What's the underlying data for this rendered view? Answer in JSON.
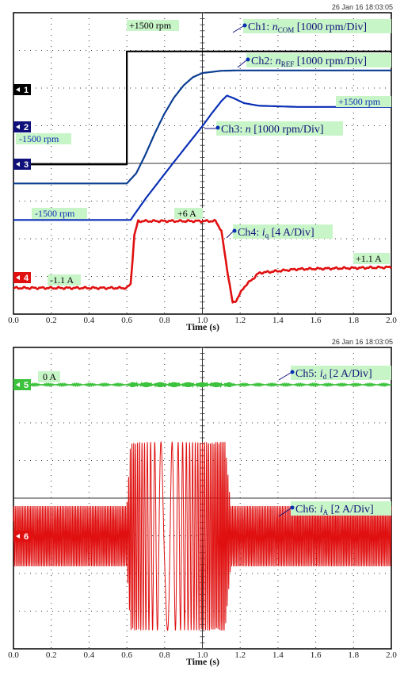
{
  "chart_data": [
    {
      "type": "line",
      "timestamp": "26 Jan 16  18:03:05",
      "xlabel": "Time (s)",
      "xlim": [
        0.0,
        2.0
      ],
      "x_ticks": [
        "0.0",
        "0.2",
        "0.4",
        "0.6",
        "0.8",
        "1.0",
        "1.2",
        "1.4",
        "1.6",
        "1.8",
        "2.0"
      ],
      "grid": true,
      "channel_markers": [
        "1",
        "2",
        "3",
        "4"
      ],
      "series": [
        {
          "channel": "1",
          "color": "#000000",
          "label_parts": [
            "Ch1: ",
            "n",
            "COM",
            " [1000 rpm/Div]"
          ],
          "x": [
            0.0,
            0.6,
            0.6,
            0.61,
            2.0
          ],
          "y": [
            -1500,
            -1500,
            1500,
            1500,
            1500
          ]
        },
        {
          "channel": "2",
          "color": "#0b3d91",
          "label_parts": [
            "Ch2: ",
            "n",
            "REF",
            " [1000 rpm/Div]"
          ],
          "x": [
            0.0,
            0.6,
            0.65,
            0.7,
            0.75,
            0.8,
            0.85,
            0.9,
            0.95,
            1.0,
            1.1,
            1.2,
            1.4,
            2.0
          ],
          "y": [
            -1500,
            -1500,
            -1230,
            -720,
            -150,
            360,
            780,
            1100,
            1320,
            1430,
            1490,
            1500,
            1500,
            1500
          ]
        },
        {
          "channel": "3",
          "color": "#0a2fb5",
          "label_parts": [
            "Ch3: ",
            "n",
            " [1000 rpm/Div]"
          ],
          "x": [
            0.0,
            0.62,
            0.7,
            0.8,
            0.9,
            1.0,
            1.05,
            1.1,
            1.13,
            1.17,
            1.22,
            1.3,
            1.5,
            2.0
          ],
          "y": [
            -1500,
            -1500,
            -930,
            -280,
            360,
            990,
            1330,
            1650,
            1800,
            1720,
            1600,
            1530,
            1500,
            1500
          ]
        },
        {
          "channel": "4",
          "color": "#e01010",
          "label_parts": [
            "Ch4: ",
            "i",
            "q",
            " [4 A/Div]"
          ],
          "x": [
            0.0,
            0.6,
            0.62,
            0.64,
            0.66,
            1.0,
            1.07,
            1.1,
            1.13,
            1.16,
            1.18,
            1.22,
            1.3,
            1.5,
            2.0
          ],
          "y": [
            -1.1,
            -1.1,
            -0.7,
            4.5,
            6.0,
            6.0,
            6.0,
            5.0,
            1.0,
            -2.7,
            -2.4,
            -1.0,
            0.5,
            0.9,
            1.1
          ]
        }
      ],
      "annotations": [
        "+1500 rpm",
        "+1500 rpm",
        "-1500 rpm",
        "-1500 rpm",
        "+6 A",
        "+1.1 A",
        "-1.1 A"
      ]
    },
    {
      "type": "line",
      "timestamp": "26 Jan 16  18:03:05",
      "xlabel": "Time (s)",
      "xlim": [
        0.0,
        2.0
      ],
      "x_ticks": [
        "0.0",
        "0.2",
        "0.4",
        "0.6",
        "0.8",
        "1.0",
        "1.2",
        "1.4",
        "1.6",
        "1.8",
        "2.0"
      ],
      "grid": true,
      "channel_markers": [
        "5",
        "6"
      ],
      "series": [
        {
          "channel": "5",
          "color": "#3cc23c",
          "label_parts": [
            "Ch5: ",
            "i",
            "d",
            " [2 A/Div]"
          ],
          "x": [
            0.0,
            2.0
          ],
          "y": [
            0,
            0
          ]
        },
        {
          "channel": "6",
          "color": "#e01010",
          "label_parts": [
            "Ch6: ",
            "i",
            "A",
            " [2 A/Div]"
          ],
          "x": [
            0.0,
            0.6,
            0.62,
            0.8,
            1.0,
            1.12,
            1.15,
            2.0
          ],
          "amplitude": [
            1.6,
            1.6,
            5.0,
            5.0,
            5.0,
            5.0,
            1.6,
            1.6
          ]
        }
      ],
      "annotations": [
        "0 A"
      ]
    }
  ]
}
